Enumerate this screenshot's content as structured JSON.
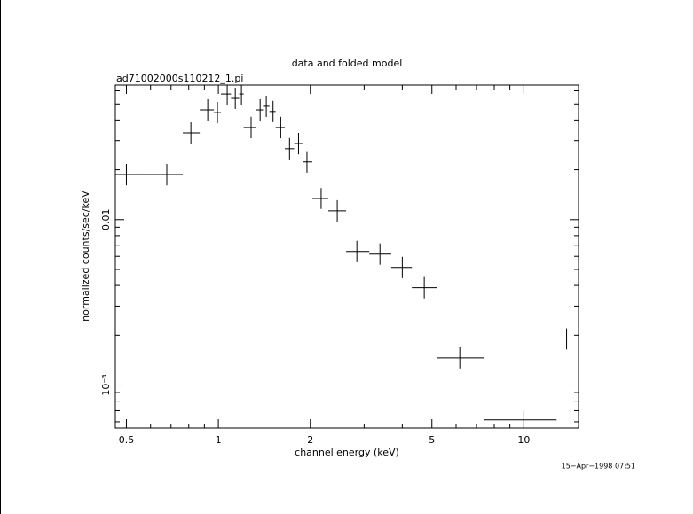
{
  "chart_data": {
    "type": "errorcross",
    "title": "data and folded model",
    "subtitle": "ad71002000s110212_1.pi",
    "x_label": "channel energy (keV)",
    "y_label": "normalized counts/sec/keV",
    "timestamp": "15−Apr−1998 07:51",
    "log_x": true,
    "log_y": true,
    "color": "#000000",
    "xlim": [
      0.46,
      15.1
    ],
    "ylim": [
      0.00055,
      0.065
    ],
    "xticks": [
      0.5,
      1,
      2,
      5,
      10
    ],
    "xminorticks": [
      0.6,
      0.7,
      0.8,
      0.9,
      3,
      4,
      6,
      7,
      8,
      9
    ],
    "yticks": [
      {
        "value": 0.01,
        "label": "0.01"
      },
      {
        "value": 0.001,
        "label": "10⁻³"
      }
    ],
    "yminorticks": [
      0.0006,
      0.0007,
      0.0008,
      0.0009,
      0.002,
      0.003,
      0.004,
      0.005,
      0.006,
      0.007,
      0.008,
      0.009,
      0.02,
      0.03,
      0.04,
      0.05,
      0.06
    ],
    "series": [
      {
        "x": [
          0.5,
          0.678,
          0.813,
          0.923,
          0.993,
          1.069,
          1.136,
          1.19,
          1.28,
          1.37,
          1.435,
          1.51,
          1.6,
          1.71,
          1.83,
          1.95,
          2.17,
          2.45,
          2.84,
          3.38,
          4.0,
          4.72,
          6.17,
          10.0,
          13.8
        ],
        "x_low": [
          0.46,
          0.562,
          0.765,
          0.869,
          0.967,
          1.02,
          1.1,
          1.17,
          1.21,
          1.33,
          1.4,
          1.47,
          1.54,
          1.65,
          1.77,
          1.89,
          2.03,
          2.29,
          2.62,
          3.12,
          3.68,
          4.3,
          5.2,
          7.41,
          12.8
        ],
        "x_high": [
          0.562,
          0.765,
          0.869,
          0.967,
          1.02,
          1.1,
          1.17,
          1.21,
          1.33,
          1.4,
          1.47,
          1.54,
          1.65,
          1.77,
          1.89,
          2.03,
          2.29,
          2.62,
          3.12,
          3.68,
          4.3,
          5.2,
          7.41,
          12.8,
          15.1
        ],
        "y": [
          0.0187,
          0.0187,
          0.0334,
          0.046,
          0.0443,
          0.0574,
          0.054,
          0.0574,
          0.036,
          0.046,
          0.0484,
          0.045,
          0.036,
          0.0268,
          0.0288,
          0.0223,
          0.0134,
          0.0113,
          0.00642,
          0.00619,
          0.00514,
          0.00388,
          0.00146,
          0.000616,
          0.0019
        ],
        "y_low": [
          0.0161,
          0.0161,
          0.0288,
          0.0397,
          0.0382,
          0.0495,
          0.0466,
          0.0495,
          0.031,
          0.0397,
          0.0417,
          0.0388,
          0.031,
          0.0231,
          0.0248,
          0.0192,
          0.0116,
          0.0097,
          0.00553,
          0.00534,
          0.00443,
          0.00334,
          0.00126,
          0.00054,
          0.00164
        ],
        "y_high": [
          0.0217,
          0.0217,
          0.0387,
          0.0534,
          0.0514,
          0.0666,
          0.0626,
          0.0666,
          0.0418,
          0.0534,
          0.0561,
          0.0522,
          0.0418,
          0.0311,
          0.0334,
          0.0259,
          0.0155,
          0.0131,
          0.00745,
          0.00718,
          0.00596,
          0.0045,
          0.00169,
          0.0007,
          0.0022
        ]
      }
    ]
  }
}
